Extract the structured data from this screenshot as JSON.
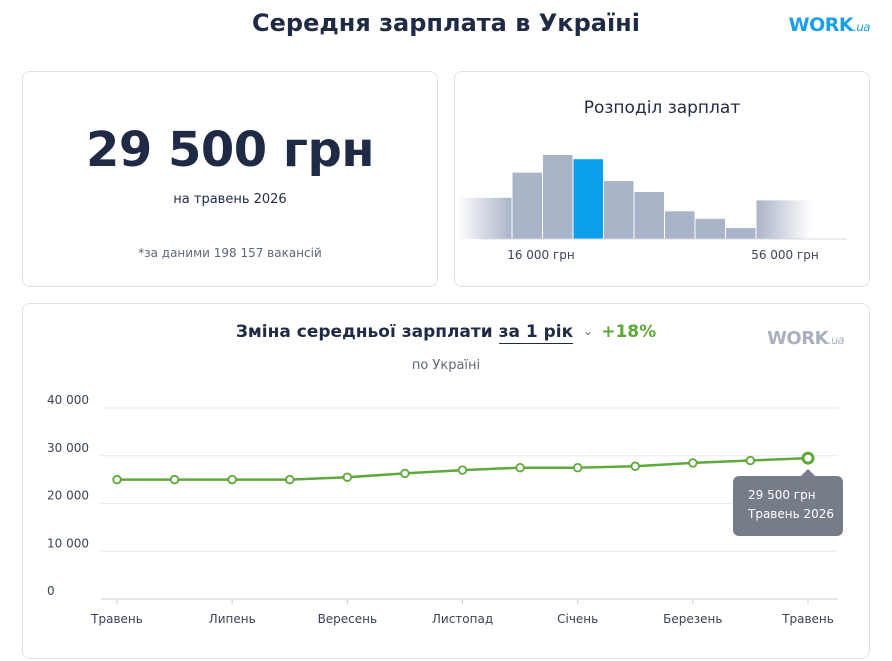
{
  "page": {
    "title": "Середня зарплата в Україні",
    "logo_main": "WORK",
    "logo_suffix": ".ua"
  },
  "summary": {
    "amount": "29 500 грн",
    "period": "на травень 2026",
    "footnote": "*за даними 198 157 вакансій"
  },
  "distribution": {
    "title": "Розподіл зарплат",
    "min_label": "16 000 грн",
    "max_label": "56 000 грн",
    "bar_color": "#aab4c8",
    "highlight_color": "#0aa0eb"
  },
  "trend": {
    "title": "Зміна середньої зарплати",
    "period_select": "за 1 рік",
    "change": "+18%",
    "subtitle": "по Україні",
    "tooltip_value": "29 500 грн",
    "tooltip_date": "Травень 2026",
    "line_color": "#5fa83a"
  },
  "chart_data": [
    {
      "type": "bar",
      "title": "Розподіл зарплат",
      "x_tick_labels": [
        "16 000 грн",
        "56 000 грн"
      ],
      "relative_frequency": [
        0.49,
        0.79,
        1.0,
        0.95,
        0.69,
        0.56,
        0.33,
        0.24,
        0.13,
        0.46
      ],
      "highlighted_index": 3,
      "edge_bars_faded": true
    },
    {
      "type": "line",
      "title": "Зміна середньої зарплати",
      "x": [
        "Травень",
        "",
        "Липень",
        "",
        "Вересень",
        "",
        "Листопад",
        "",
        "Січень",
        "",
        "Березень",
        "",
        "Травень"
      ],
      "y": [
        25000,
        25000,
        25000,
        25000,
        25500,
        26300,
        27000,
        27500,
        27500,
        27800,
        28500,
        29000,
        29500
      ],
      "yticks": [
        "0",
        "10 000",
        "20 000",
        "30 000",
        "40 000"
      ],
      "ytick_values": [
        0,
        10000,
        20000,
        30000,
        40000
      ],
      "ylim": [
        0,
        40000
      ],
      "grid": true,
      "highlighted_point": {
        "index": 12,
        "value": "29 500 грн",
        "label": "Травень 2026"
      }
    }
  ]
}
